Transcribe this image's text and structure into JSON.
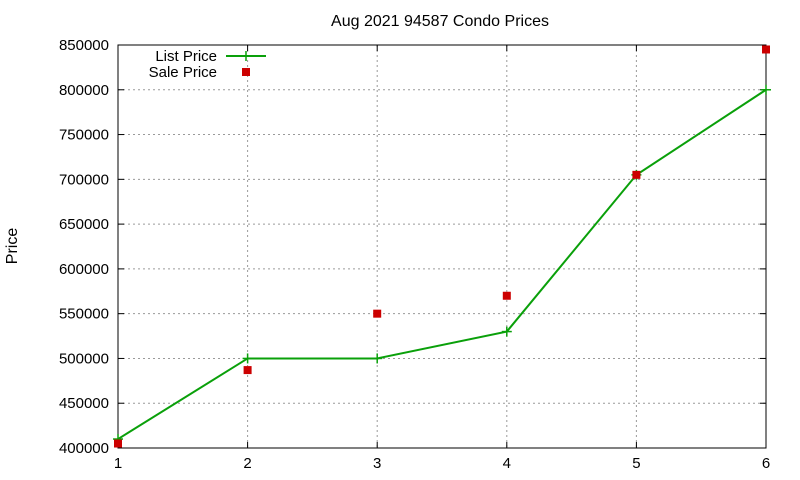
{
  "chart_data": {
    "type": "line",
    "title": "Aug 2021 94587 Condo Prices",
    "xlabel": "",
    "ylabel": "Price",
    "xlim": [
      1,
      6
    ],
    "ylim": [
      400000,
      850000
    ],
    "x_ticks": [
      1,
      2,
      3,
      4,
      5,
      6
    ],
    "y_ticks": [
      400000,
      450000,
      500000,
      550000,
      600000,
      650000,
      700000,
      750000,
      800000,
      850000
    ],
    "grid": true,
    "legend_position": "top-left",
    "series": [
      {
        "name": "List Price",
        "style": "line-with-plus-markers",
        "color": "#0aa00a",
        "x": [
          1,
          2,
          3,
          4,
          5,
          6
        ],
        "values": [
          410000,
          500000,
          500000,
          530000,
          705000,
          800000
        ]
      },
      {
        "name": "Sale Price",
        "style": "square-markers",
        "color": "#cc0000",
        "x": [
          1,
          2,
          3,
          4,
          5,
          6
        ],
        "values": [
          405000,
          487000,
          550000,
          570000,
          705000,
          845000
        ]
      }
    ]
  }
}
